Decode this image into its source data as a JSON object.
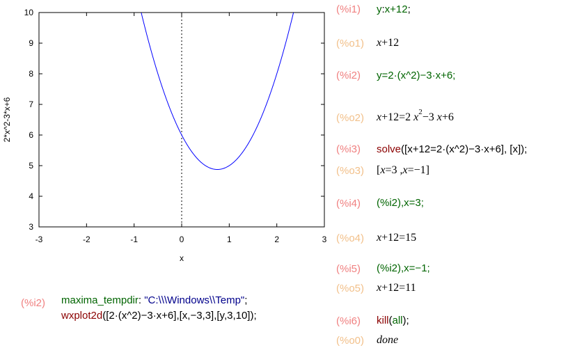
{
  "chart_data": {
    "type": "line",
    "function": "2*x^2-3*x+6",
    "xlabel": "x",
    "ylabel": "2*x^2-3*x+6",
    "xlim": [
      -3,
      3
    ],
    "ylim": [
      3,
      10
    ],
    "x_ticks": [
      "-3",
      "-2",
      "-1",
      "0",
      "1",
      "2",
      "3"
    ],
    "y_ticks": [
      "3",
      "4",
      "5",
      "6",
      "7",
      "8",
      "9",
      "10"
    ],
    "series_color": "#0000ff",
    "zero_axis": "x=0 dotted",
    "grid": false
  },
  "cells": {
    "i1": {
      "label": "(%i1)",
      "var": "y",
      "colon": ":",
      "expr": "x+12",
      "semi": ";"
    },
    "o1": {
      "label": "(%o1)"
    },
    "i2": {
      "label": "(%i2)",
      "eq": "y=2·(x^2)−3·x+6;"
    },
    "o2": {
      "label": "(%o2)"
    },
    "i3": {
      "label": "(%i3)",
      "fn": "solve",
      "args": "([x+12=2·(x^2)−3·x+6], [x]);"
    },
    "o3": {
      "label": "(%o3)"
    },
    "i4": {
      "label": "(%i4)",
      "text": "(%i2),x=3;"
    },
    "o4": {
      "label": "(%o4)"
    },
    "i5": {
      "label": "(%i5)",
      "text": "(%i2),x=−1;"
    },
    "o5": {
      "label": "(%o5)"
    },
    "i6": {
      "label": "(%i6)",
      "fn": "kill",
      "arg": "all",
      "rest": ");"
    },
    "o0": {
      "label": "(%o0)",
      "result": "done"
    },
    "plot_cell": {
      "label": "(%i2)",
      "line1_var": "maxima_tempdir",
      "line1_string": "\"C:\\\\\\Windows\\\\Temp\"",
      "line2_fn": "wxplot2d",
      "line2_args": "([2·(x^2)−3·x+6],[x,−3,3],[y,3,10]);"
    }
  },
  "outputs": {
    "o1": [
      "x",
      "+12"
    ],
    "o2": [
      "x",
      "+12=2",
      "x",
      "2",
      "−3",
      "x",
      "+6"
    ],
    "o3": [
      "[",
      "x",
      "=3 ,",
      "x",
      "=−1]"
    ],
    "o4": [
      "x",
      "+12=15"
    ],
    "o5": [
      "x",
      "+12=11"
    ]
  },
  "colors": {
    "input_label": "#f08080",
    "output_label": "#f2c08a",
    "function": "#8b0000",
    "variable": "#006400",
    "number": "#8b4513",
    "string": "#00008b"
  }
}
